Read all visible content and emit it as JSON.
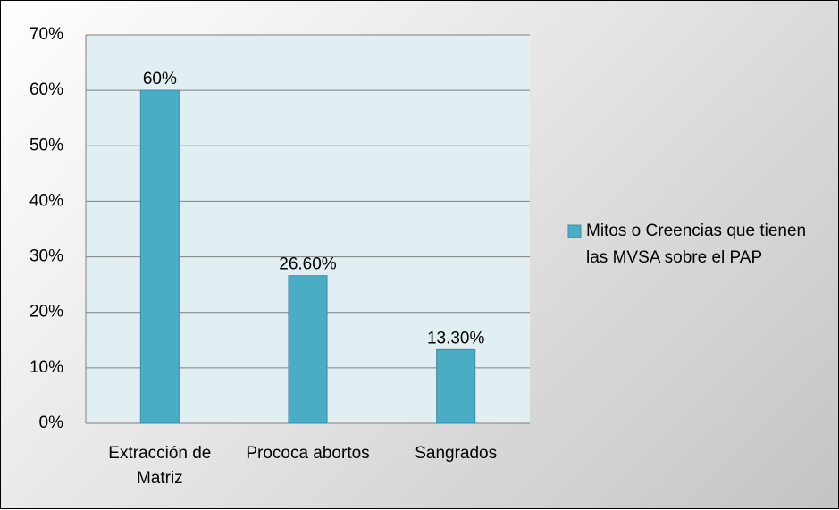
{
  "chart_data": {
    "type": "bar",
    "categories": [
      "Extracción de Matriz",
      "Prococa abortos",
      "Sangrados"
    ],
    "series": [
      {
        "name": "Mitos o Creencias que tienen las MVSA sobre el PAP",
        "color": "#4bacc6",
        "values": [
          60,
          26.6,
          13.3
        ],
        "value_labels": [
          "60%",
          "26.60%",
          "13.30%"
        ]
      }
    ],
    "ylim": [
      0,
      70
    ],
    "yticks": [
      {
        "value": 0,
        "label": "0%"
      },
      {
        "value": 10,
        "label": "10%"
      },
      {
        "value": 20,
        "label": "20%"
      },
      {
        "value": 30,
        "label": "30%"
      },
      {
        "value": 40,
        "label": "40%"
      },
      {
        "value": 50,
        "label": "50%"
      },
      {
        "value": 60,
        "label": "60%"
      },
      {
        "value": 70,
        "label": "70%"
      }
    ],
    "grid": true,
    "legend": "right"
  }
}
